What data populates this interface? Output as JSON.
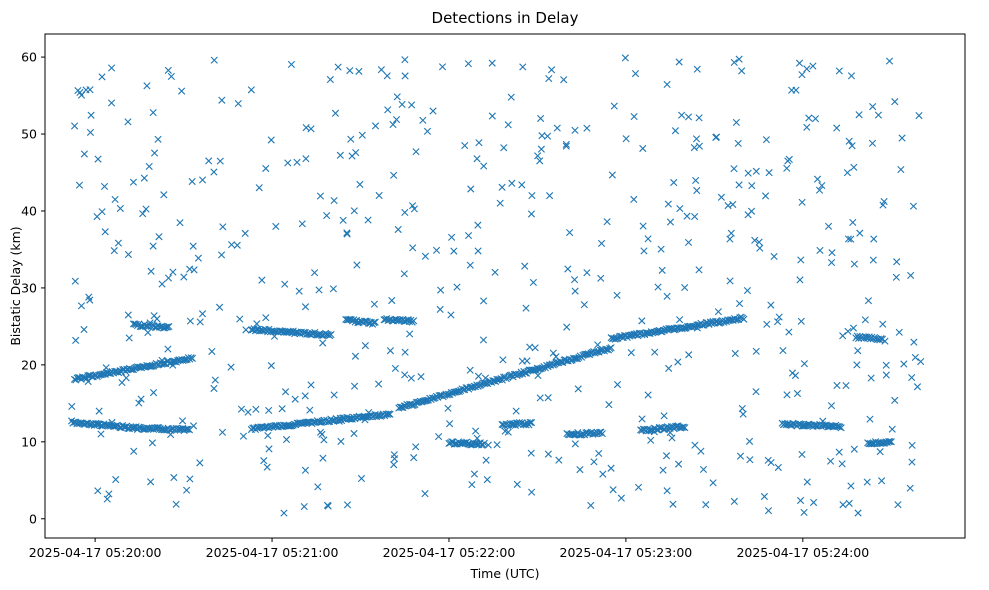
{
  "chart_data": {
    "type": "scatter",
    "title": "Detections in Delay",
    "xlabel": "Time (UTC)",
    "ylabel": "Bistatic Delay (km)",
    "marker": "x",
    "color": "#1f77b4",
    "xlim": [
      "2025-04-17 05:19:43",
      "2025-04-17 05:24:55"
    ],
    "ylim": [
      -2.5,
      63
    ],
    "x_ticks": [
      "2025-04-17 05:20:00",
      "2025-04-17 05:21:00",
      "2025-04-17 05:22:00",
      "2025-04-17 05:23:00",
      "2025-04-17 05:24:00"
    ],
    "y_ticks": [
      "0",
      "10",
      "20",
      "30",
      "40",
      "50",
      "60"
    ],
    "grid": false,
    "tracks": [
      {
        "x_start": "2025-04-17 05:19:52",
        "x_end": "2025-04-17 05:20:13",
        "y_start": 12.6,
        "y_end": 11.8
      },
      {
        "x_start": "2025-04-17 05:20:13",
        "x_end": "2025-04-17 05:20:32",
        "y_start": 11.8,
        "y_end": 11.6
      },
      {
        "x_start": "2025-04-17 05:20:53",
        "x_end": "2025-04-17 05:21:40",
        "y_start": 11.7,
        "y_end": 13.6
      },
      {
        "x_start": "2025-04-17 05:19:53",
        "x_end": "2025-04-17 05:20:33",
        "y_start": 18.1,
        "y_end": 20.9
      },
      {
        "x_start": "2025-04-17 05:21:43",
        "x_end": "2025-04-17 05:22:55",
        "y_start": 14.4,
        "y_end": 22.2
      },
      {
        "x_start": "2025-04-17 05:22:55",
        "x_end": "2025-04-17 05:23:40",
        "y_start": 23.4,
        "y_end": 26.1
      },
      {
        "x_start": "2025-04-17 05:20:53",
        "x_end": "2025-04-17 05:21:20",
        "y_start": 24.6,
        "y_end": 23.9
      },
      {
        "x_start": "2025-04-17 05:20:13",
        "x_end": "2025-04-17 05:20:25",
        "y_start": 25.2,
        "y_end": 24.9
      },
      {
        "x_start": "2025-04-17 05:21:25",
        "x_end": "2025-04-17 05:21:35",
        "y_start": 25.8,
        "y_end": 25.4
      },
      {
        "x_start": "2025-04-17 05:21:38",
        "x_end": "2025-04-17 05:21:48",
        "y_start": 25.9,
        "y_end": 25.7
      },
      {
        "x_start": "2025-04-17 05:22:18",
        "x_end": "2025-04-17 05:22:28",
        "y_start": 12.2,
        "y_end": 12.4
      },
      {
        "x_start": "2025-04-17 05:22:00",
        "x_end": "2025-04-17 05:22:12",
        "y_start": 9.9,
        "y_end": 9.7
      },
      {
        "x_start": "2025-04-17 05:22:40",
        "x_end": "2025-04-17 05:22:52",
        "y_start": 11.0,
        "y_end": 11.1
      },
      {
        "x_start": "2025-04-17 05:23:05",
        "x_end": "2025-04-17 05:23:20",
        "y_start": 11.5,
        "y_end": 12.0
      },
      {
        "x_start": "2025-04-17 05:23:53",
        "x_end": "2025-04-17 05:24:13",
        "y_start": 12.3,
        "y_end": 12.0
      },
      {
        "x_start": "2025-04-17 05:24:18",
        "x_end": "2025-04-17 05:24:27",
        "y_start": 23.6,
        "y_end": 23.4
      },
      {
        "x_start": "2025-04-17 05:24:22",
        "x_end": "2025-04-17 05:24:30",
        "y_start": 9.8,
        "y_end": 10.0
      }
    ],
    "clutter": {
      "count": 560,
      "x_range": [
        "2025-04-17 05:19:52",
        "2025-04-17 05:24:40"
      ],
      "y_range": [
        0.5,
        60
      ]
    }
  }
}
